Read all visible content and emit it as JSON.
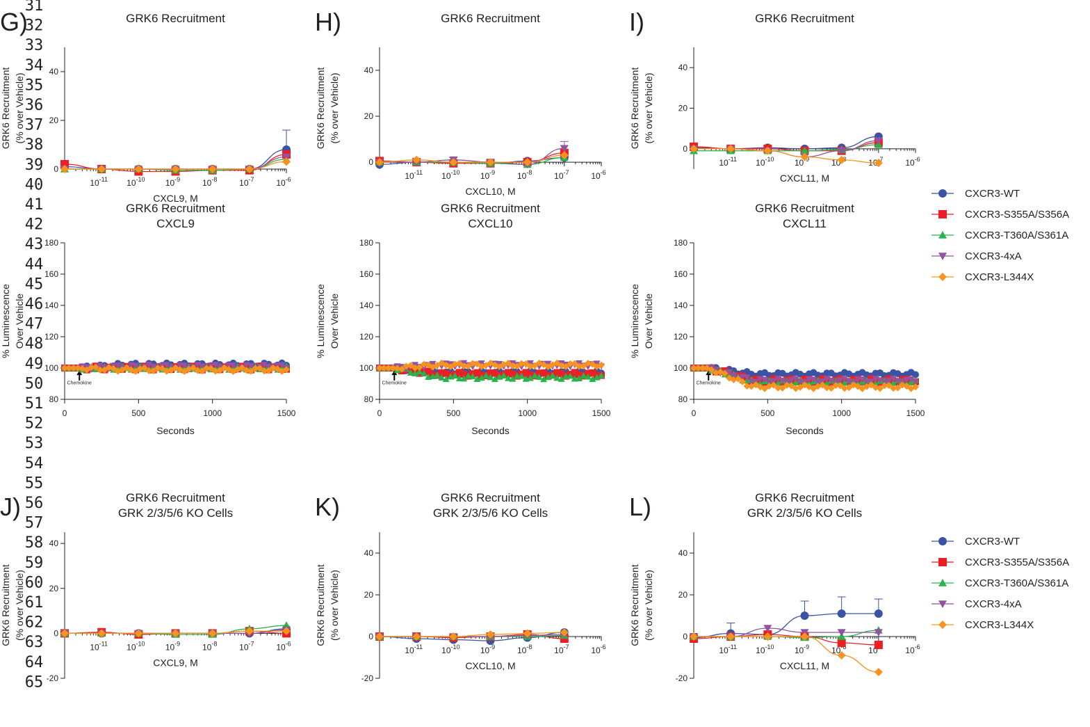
{
  "series_meta": [
    {
      "name": "CXCR3-WT",
      "color": "#3a53a4",
      "marker": "circle"
    },
    {
      "name": "CXCR3-S355A/S356A",
      "color": "#ec2024",
      "marker": "square"
    },
    {
      "name": "CXCR3-T360A/S361A",
      "color": "#28b34b",
      "marker": "triangle-up"
    },
    {
      "name": "CXCR3-4xA",
      "color": "#9453a0",
      "marker": "triangle-down"
    },
    {
      "name": "CXCR3-L344X",
      "color": "#f7931e",
      "marker": "diamond"
    }
  ],
  "line_numbers": [
    "31",
    "32",
    "33",
    "34",
    "35",
    "36",
    "37",
    "38",
    "39",
    "40",
    "41",
    "42",
    "43",
    "44",
    "45",
    "46",
    "47",
    "48",
    "49",
    "50",
    "51",
    "52",
    "53",
    "54",
    "55",
    "56",
    "57",
    "58",
    "59",
    "60",
    "61",
    "62",
    "63",
    "64",
    "65"
  ],
  "chart_data": [
    {
      "type": "scatter",
      "panel": "G)",
      "title": "GRK6 Recruitment",
      "subtitle": "",
      "xlabel": "CXCL9, M",
      "ylabel": [
        "GRK6  Recruitment",
        "(% over Vehicle)"
      ],
      "xscale": "log",
      "xlim": [
        -12,
        -6
      ],
      "ylim": [
        0,
        50
      ],
      "yticks": [
        "0",
        "20",
        "40"
      ],
      "xticks": [
        {
          "b": "10",
          "e": "-11"
        },
        {
          "b": "10",
          "e": "-10"
        },
        {
          "b": "10",
          "e": "-9"
        },
        {
          "b": "10",
          "e": "-8"
        },
        {
          "b": "10",
          "e": "-7"
        },
        {
          "b": "10",
          "e": "-6"
        }
      ],
      "series": [
        {
          "name": "CXCR3-WT",
          "x": [
            -12,
            -11,
            -10,
            -9,
            -8,
            -7,
            -6
          ],
          "y": [
            1,
            0,
            0,
            0,
            0,
            0,
            8
          ],
          "err": [
            0,
            0,
            0,
            0,
            0,
            0,
            8
          ]
        },
        {
          "name": "CXCR3-S355A/S356A",
          "x": [
            -12,
            -11,
            -10,
            -9,
            -8,
            -7,
            -6
          ],
          "y": [
            2,
            0,
            -1,
            -1,
            -0.5,
            -0.5,
            6
          ]
        },
        {
          "name": "CXCR3-T360A/S361A",
          "x": [
            -12,
            -11,
            -10,
            -9,
            -8,
            -7,
            -6
          ],
          "y": [
            0,
            0,
            0,
            -0.5,
            -0.5,
            0,
            4
          ]
        },
        {
          "name": "CXCR3-4xA",
          "x": [
            -12,
            -11,
            -10,
            -9,
            -8,
            -7,
            -6
          ],
          "y": [
            0,
            0,
            0,
            0,
            0,
            0,
            5
          ]
        },
        {
          "name": "CXCR3-L344X",
          "x": [
            -12,
            -11,
            -10,
            -9,
            -8,
            -7,
            -6
          ],
          "y": [
            0,
            0,
            0,
            0,
            0,
            0,
            3
          ]
        }
      ]
    },
    {
      "type": "scatter",
      "panel": "H)",
      "title": "GRK6 Recruitment",
      "subtitle": "",
      "xlabel": "CXCL10, M",
      "ylabel": [
        "GRK6  Recruitment",
        "(% over Vehicle)"
      ],
      "xscale": "log",
      "xlim": [
        -12,
        -6
      ],
      "ylim": [
        -3,
        50
      ],
      "yticks": [
        "0",
        "20",
        "40"
      ],
      "xticks": [
        {
          "b": "10",
          "e": "-11"
        },
        {
          "b": "10",
          "e": "-10"
        },
        {
          "b": "10",
          "e": "-9"
        },
        {
          "b": "10",
          "e": "-8"
        },
        {
          "b": "10",
          "e": "-7"
        },
        {
          "b": "10",
          "e": "-6"
        }
      ],
      "series": [
        {
          "name": "CXCR3-WT",
          "x": [
            -12,
            -11,
            -10,
            -9,
            -8,
            -7
          ],
          "y": [
            -1,
            0,
            0,
            -0.5,
            0.5,
            2
          ]
        },
        {
          "name": "CXCR3-S355A/S356A",
          "x": [
            -12,
            -11,
            -10,
            -9,
            -8,
            -7
          ],
          "y": [
            0.5,
            0,
            -0.5,
            -0.5,
            0,
            4
          ]
        },
        {
          "name": "CXCR3-T360A/S361A",
          "x": [
            -12,
            -11,
            -10,
            -9,
            -8,
            -7
          ],
          "y": [
            0,
            0,
            0,
            -0.5,
            -1,
            2
          ]
        },
        {
          "name": "CXCR3-4xA",
          "x": [
            -12,
            -11,
            -10,
            -9,
            -8,
            -7
          ],
          "y": [
            0,
            0,
            1,
            0,
            -1,
            6
          ],
          "err": [
            0,
            0,
            1,
            0,
            0,
            3
          ]
        },
        {
          "name": "CXCR3-L344X",
          "x": [
            -12,
            -11,
            -10,
            -9,
            -8,
            -7
          ],
          "y": [
            0,
            1,
            0,
            0,
            0,
            3
          ]
        }
      ]
    },
    {
      "type": "scatter",
      "panel": "I)",
      "title": "GRK6 Recruitment",
      "subtitle": "",
      "xlabel": "CXCL11, M",
      "ylabel": [
        "GRK6  Recruitment",
        "(% over Vehicle)"
      ],
      "xscale": "log",
      "xlim": [
        -12,
        -6
      ],
      "ylim": [
        -10,
        50
      ],
      "yticks": [
        "0",
        "20",
        "40"
      ],
      "xticks": [
        {
          "b": "10",
          "e": "-11"
        },
        {
          "b": "10",
          "e": "-10"
        },
        {
          "b": "10",
          "e": "-9"
        },
        {
          "b": "10",
          "e": "-8"
        },
        {
          "b": "10",
          "e": "-7"
        },
        {
          "b": "10",
          "e": "-6"
        }
      ],
      "series": [
        {
          "name": "CXCR3-WT",
          "x": [
            -12,
            -11,
            -10,
            -9,
            -8,
            -7
          ],
          "y": [
            0.5,
            0,
            0.5,
            0,
            0.5,
            6
          ]
        },
        {
          "name": "CXCR3-S355A/S356A",
          "x": [
            -12,
            -11,
            -10,
            -9,
            -8,
            -7
          ],
          "y": [
            1,
            0,
            0,
            -1,
            -1,
            3
          ]
        },
        {
          "name": "CXCR3-T360A/S361A",
          "x": [
            -12,
            -11,
            -10,
            -9,
            -8,
            -7
          ],
          "y": [
            -1,
            -1,
            -1,
            -1,
            -0.5,
            2
          ]
        },
        {
          "name": "CXCR3-4xA",
          "x": [
            -12,
            -11,
            -10,
            -9,
            -8,
            -7
          ],
          "y": [
            0,
            0,
            -1,
            -4,
            -1,
            4
          ]
        },
        {
          "name": "CXCR3-L344X",
          "x": [
            -12,
            -11,
            -10,
            -9,
            -8,
            -7
          ],
          "y": [
            0,
            0,
            -1,
            -4,
            -5.5,
            -7
          ]
        }
      ]
    },
    {
      "type": "line",
      "panel": "",
      "title": "GRK6 Recruitment",
      "subtitle": "CXCL9",
      "xlabel": "Seconds",
      "ylabel": [
        "% Luminescence",
        "Over Vehicle"
      ],
      "xlim": [
        0,
        1500
      ],
      "ylim": [
        80,
        180
      ],
      "yticks": [
        "80",
        "100",
        "120",
        "140",
        "160",
        "180"
      ],
      "xticks": [
        "0",
        "500",
        "1000",
        "1500"
      ],
      "annotation": "Chemokine",
      "annotation_x": 100,
      "series": [
        {
          "name": "CXCR3-WT",
          "level": 102
        },
        {
          "name": "CXCR3-S355A/S356A",
          "level": 100
        },
        {
          "name": "CXCR3-T360A/S361A",
          "level": 100
        },
        {
          "name": "CXCR3-4xA",
          "level": 101
        },
        {
          "name": "CXCR3-L344X",
          "level": 99
        }
      ]
    },
    {
      "type": "line",
      "panel": "",
      "title": "GRK6 Recruitment",
      "subtitle": "CXCL10",
      "xlabel": "Seconds",
      "ylabel": [
        "% Luminescence",
        "Over Vehicle"
      ],
      "xlim": [
        0,
        1500
      ],
      "ylim": [
        80,
        180
      ],
      "yticks": [
        "80",
        "100",
        "120",
        "140",
        "160",
        "180"
      ],
      "xticks": [
        "0",
        "500",
        "1000",
        "1500"
      ],
      "annotation": "Chemokine",
      "annotation_x": 100,
      "series": [
        {
          "name": "CXCR3-WT",
          "level": 97
        },
        {
          "name": "CXCR3-S355A/S356A",
          "level": 96
        },
        {
          "name": "CXCR3-T360A/S361A",
          "level": 94
        },
        {
          "name": "CXCR3-4xA",
          "level": 102
        },
        {
          "name": "CXCR3-L344X",
          "level": 102
        }
      ]
    },
    {
      "type": "line",
      "panel": "",
      "title": "GRK6 Recruitment",
      "subtitle": "CXCL11",
      "xlabel": "Seconds",
      "ylabel": [
        "% Luminescence",
        "Over Vehicle"
      ],
      "xlim": [
        0,
        1500
      ],
      "ylim": [
        80,
        180
      ],
      "yticks": [
        "80",
        "100",
        "120",
        "140",
        "160",
        "180"
      ],
      "xticks": [
        "0",
        "500",
        "1000",
        "1500"
      ],
      "annotation": "Chemokine",
      "annotation_x": 100,
      "series": [
        {
          "name": "CXCR3-WT",
          "level": 96
        },
        {
          "name": "CXCR3-S355A/S356A",
          "level": 92
        },
        {
          "name": "CXCR3-T360A/S361A",
          "level": 91
        },
        {
          "name": "CXCR3-4xA",
          "level": 92
        },
        {
          "name": "CXCR3-L344X",
          "level": 88
        }
      ]
    },
    {
      "type": "scatter",
      "panel": "J)",
      "title": "GRK6 Recruitment",
      "subtitle": "GRK 2/3/5/6 KO Cells",
      "xlabel": "CXCL9, M",
      "ylabel": [
        "GRK6 Recruitment",
        "(% over Vehicle)"
      ],
      "xscale": "log",
      "xlim": [
        -12,
        -6
      ],
      "ylim": [
        -20,
        45
      ],
      "yticks": [
        "-20",
        "0",
        "20",
        "40"
      ],
      "xticks": [
        {
          "b": "10",
          "e": "-11"
        },
        {
          "b": "10",
          "e": "-10"
        },
        {
          "b": "10",
          "e": "-9"
        },
        {
          "b": "10",
          "e": "-8"
        },
        {
          "b": "10",
          "e": "-7"
        },
        {
          "b": "10",
          "e": "-6"
        }
      ],
      "series": [
        {
          "name": "CXCR3-WT",
          "x": [
            -12,
            -11,
            -10,
            -9,
            -8,
            -7,
            -6
          ],
          "y": [
            0,
            0,
            0,
            0,
            0,
            0,
            2
          ]
        },
        {
          "name": "CXCR3-S355A/S356A",
          "x": [
            -12,
            -11,
            -10,
            -9,
            -8,
            -7,
            -6
          ],
          "y": [
            0,
            0.5,
            -0.5,
            0,
            0,
            1,
            0
          ]
        },
        {
          "name": "CXCR3-T360A/S361A",
          "x": [
            -12,
            -11,
            -10,
            -9,
            -8,
            -7,
            -6
          ],
          "y": [
            0,
            0,
            0,
            -0.5,
            -0.5,
            2,
            3.5
          ]
        },
        {
          "name": "CXCR3-4xA",
          "x": [
            -12,
            -11,
            -10,
            -9,
            -8,
            -7,
            -6
          ],
          "y": [
            0,
            0,
            0,
            0,
            0,
            0,
            1.5
          ]
        },
        {
          "name": "CXCR3-L344X",
          "x": [
            -12,
            -11,
            -10,
            -9,
            -8,
            -7,
            -6
          ],
          "y": [
            0,
            0,
            0,
            0,
            0,
            1,
            1
          ]
        }
      ]
    },
    {
      "type": "scatter",
      "panel": "K)",
      "title": "GRK6 Recruitment",
      "subtitle": "GRK 2/3/5/6 KO Cells",
      "xlabel": "CXCL10, M",
      "ylabel": [
        "GRK6 Recruitment",
        "(% over Vehicle)"
      ],
      "xscale": "log",
      "xlim": [
        -12,
        -6
      ],
      "ylim": [
        -20,
        50
      ],
      "yticks": [
        "-20",
        "0",
        "20",
        "40"
      ],
      "xticks": [
        {
          "b": "10",
          "e": "-11"
        },
        {
          "b": "10",
          "e": "-10"
        },
        {
          "b": "10",
          "e": "-9"
        },
        {
          "b": "10",
          "e": "-8"
        },
        {
          "b": "10",
          "e": "-7"
        },
        {
          "b": "10",
          "e": "-6"
        }
      ],
      "series": [
        {
          "name": "CXCR3-WT",
          "x": [
            -12,
            -11,
            -10,
            -9,
            -8,
            -7
          ],
          "y": [
            0,
            -1,
            -1.5,
            -2,
            -0.5,
            2
          ]
        },
        {
          "name": "CXCR3-S355A/S356A",
          "x": [
            -12,
            -11,
            -10,
            -9,
            -8,
            -7
          ],
          "y": [
            0,
            0,
            -0.5,
            0,
            1,
            -1
          ]
        },
        {
          "name": "CXCR3-T360A/S361A",
          "x": [
            -12,
            -11,
            -10,
            -9,
            -8,
            -7
          ],
          "y": [
            0,
            0,
            0,
            0,
            0,
            0.5
          ]
        },
        {
          "name": "CXCR3-4xA",
          "x": [
            -12,
            -11,
            -10,
            -9,
            -8,
            -7
          ],
          "y": [
            0,
            0,
            0,
            0,
            0.5,
            1
          ]
        },
        {
          "name": "CXCR3-L344X",
          "x": [
            -12,
            -11,
            -10,
            -9,
            -8,
            -7
          ],
          "y": [
            0,
            0,
            0,
            1,
            1.5,
            2
          ]
        }
      ]
    },
    {
      "type": "scatter",
      "panel": "L)",
      "title": "GRK6 Recruitment",
      "subtitle": "GRK 2/3/5/6 KO Cells",
      "xlabel": "CXCL11, M",
      "ylabel": [
        "GRK6 Recruitment",
        "(% over Vehicle)"
      ],
      "xscale": "log",
      "xlim": [
        -12,
        -6
      ],
      "ylim": [
        -20,
        50
      ],
      "yticks": [
        "-20",
        "0",
        "20",
        "40"
      ],
      "xticks": [
        {
          "b": "10",
          "e": "-11"
        },
        {
          "b": "10",
          "e": "-10"
        },
        {
          "b": "10",
          "e": "-9"
        },
        {
          "b": "10",
          "e": "-8"
        },
        {
          "b": "10",
          "e": "-7"
        },
        {
          "b": "10",
          "e": "-6"
        }
      ],
      "series": [
        {
          "name": "CXCR3-WT",
          "x": [
            -12,
            -11,
            -10,
            -9,
            -8,
            -7
          ],
          "y": [
            -0.5,
            1.5,
            1,
            10,
            11,
            11
          ],
          "err": [
            2,
            5,
            0,
            7,
            8,
            7
          ]
        },
        {
          "name": "CXCR3-S355A/S356A",
          "x": [
            -12,
            -11,
            -10,
            -9,
            -8,
            -7
          ],
          "y": [
            -1,
            0,
            1,
            0,
            -3,
            -4
          ]
        },
        {
          "name": "CXCR3-T360A/S361A",
          "x": [
            -12,
            -11,
            -10,
            -9,
            -8,
            -7
          ],
          "y": [
            0,
            0,
            0,
            -0.5,
            0,
            3
          ]
        },
        {
          "name": "CXCR3-4xA",
          "x": [
            -12,
            -11,
            -10,
            -9,
            -8,
            -7
          ],
          "y": [
            0,
            0,
            4,
            2,
            2,
            2
          ]
        },
        {
          "name": "CXCR3-L344X",
          "x": [
            -12,
            -11,
            -10,
            -9,
            -8,
            -7
          ],
          "y": [
            0,
            0,
            0,
            0,
            -9,
            -17
          ]
        }
      ]
    }
  ]
}
